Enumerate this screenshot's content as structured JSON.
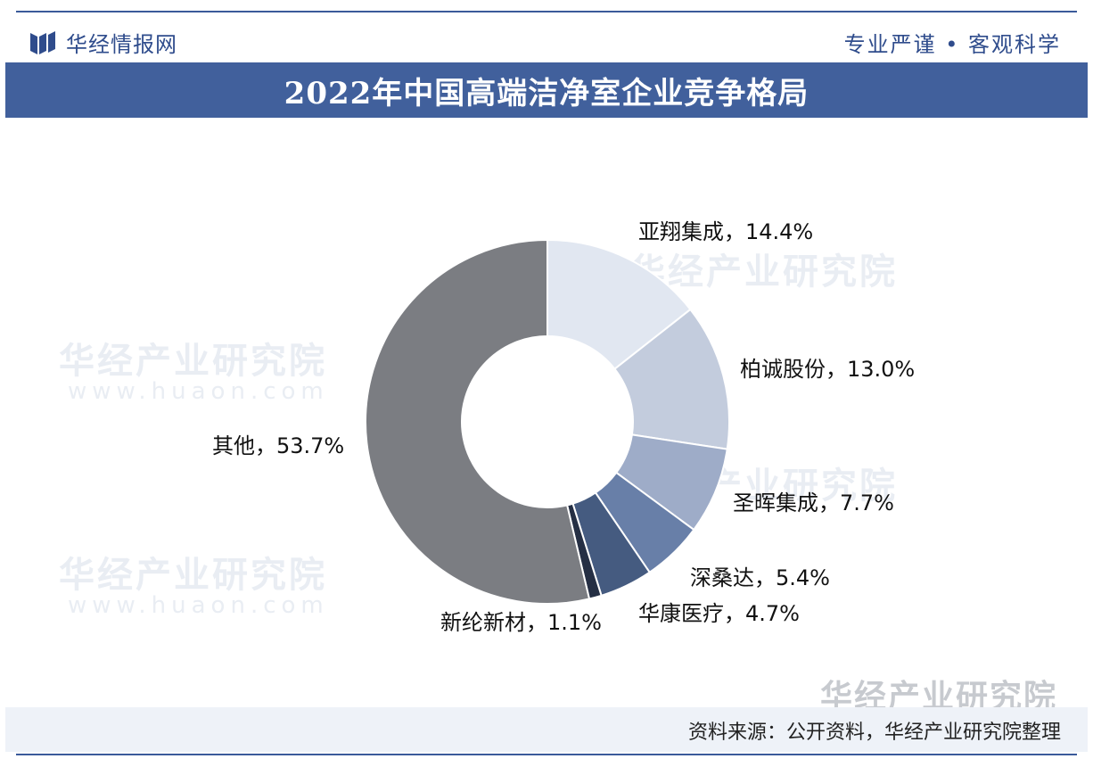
{
  "header": {
    "brand": "华经情报网",
    "slogan": "专业严谨 • 客观科学"
  },
  "watermark": {
    "text": "华经产业研究院",
    "url": "www.huaon.com"
  },
  "footer": {
    "source": "资料来源：公开资料，华经产业研究院整理",
    "brand": "华经产业研究院"
  },
  "colors": {
    "header_text": "#2f4c8c",
    "title_bar": "#41609c",
    "accent_line": "#3a5a9a"
  },
  "chart_data": {
    "type": "pie",
    "title": "2022年中国高端洁净室企业竞争格局",
    "donut": true,
    "unit": "%",
    "slices": [
      {
        "name": "亚翔集成",
        "value": 14.4,
        "label": "亚翔集成，14.4%",
        "color": "#e1e7f1"
      },
      {
        "name": "柏诚股份",
        "value": 13.0,
        "label": "柏诚股份，13.0%",
        "color": "#c3ccdd"
      },
      {
        "name": "圣晖集成",
        "value": 7.7,
        "label": "圣晖集成，7.7%",
        "color": "#9eacc8"
      },
      {
        "name": "深桑达",
        "value": 5.4,
        "label": "深桑达，5.4%",
        "color": "#687fa8"
      },
      {
        "name": "华康医疗",
        "value": 4.7,
        "label": "华康医疗，4.7%",
        "color": "#455b80"
      },
      {
        "name": "新纶新材",
        "value": 1.1,
        "label": "新纶新材，1.1%",
        "color": "#252f44"
      },
      {
        "name": "其他",
        "value": 53.7,
        "label": "其他，53.7%",
        "color": "#7b7d82"
      }
    ]
  }
}
